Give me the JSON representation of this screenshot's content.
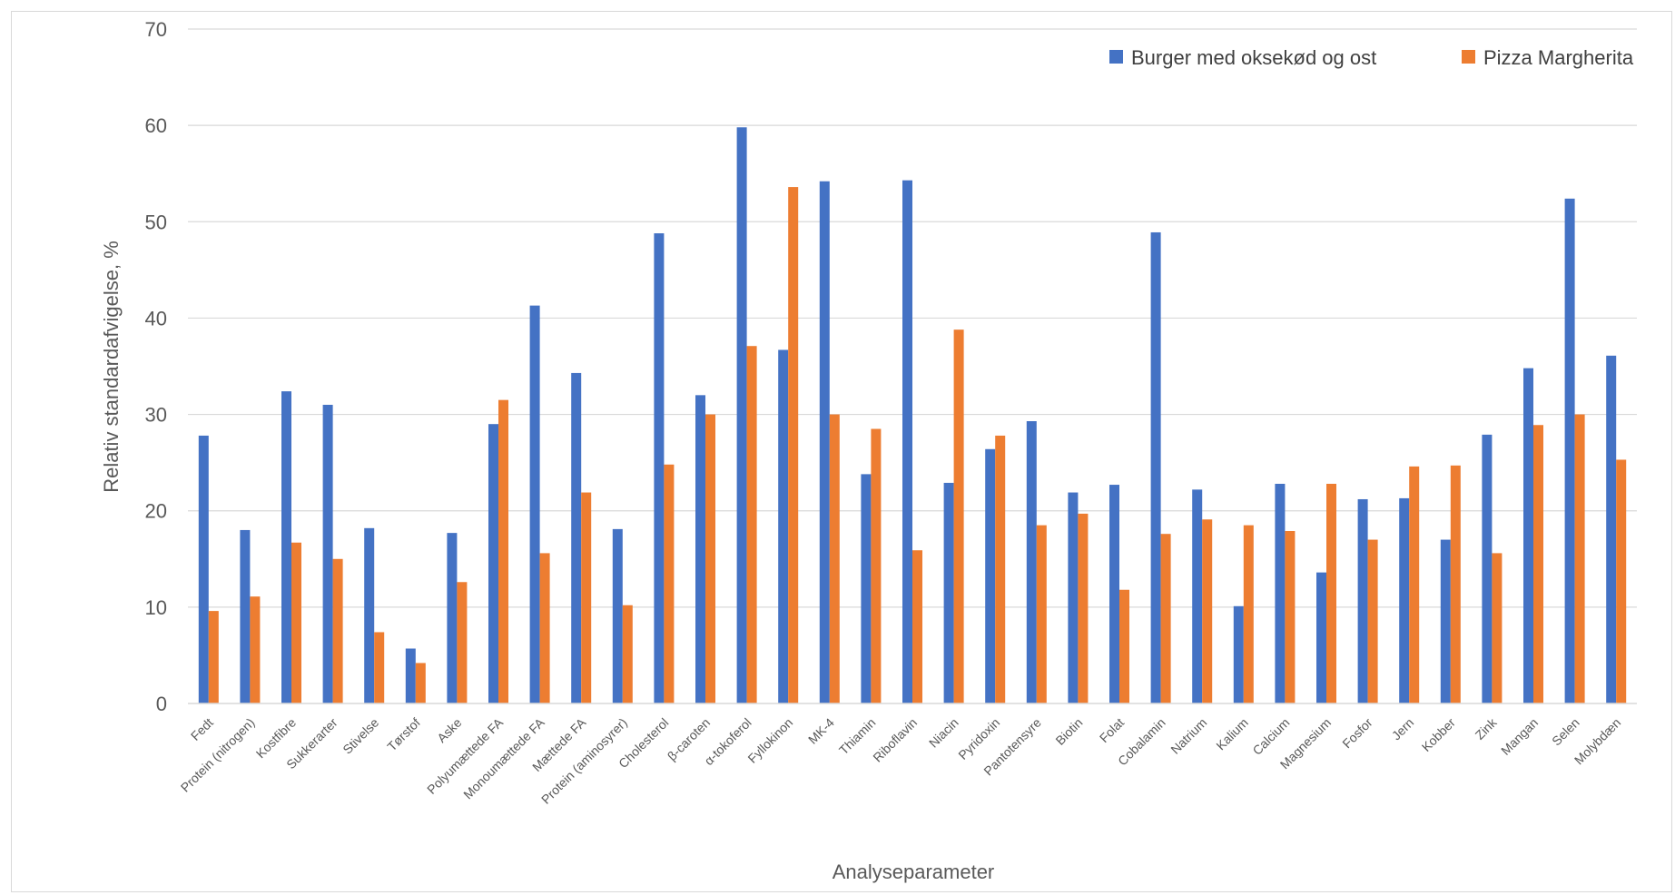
{
  "chart_data": {
    "type": "bar",
    "xlabel": "Analyseparameter",
    "ylabel": "Relativ standardafvigelse, %",
    "ylim": [
      0,
      70
    ],
    "yticks": [
      0,
      10,
      20,
      30,
      40,
      50,
      60,
      70
    ],
    "grid": true,
    "legend_position": "top-right",
    "categories": [
      "Fedt",
      "Protein (nitrogen)",
      "Kostfibre",
      "Sukkerarter",
      "Stivelse",
      "Tørstof",
      "Aske",
      "Polyumættede FA",
      "Monoumættede FA",
      "Mættede FA",
      "Protein (aminosyrer)",
      "Cholesterol",
      "β-caroten",
      "α-tokoferol",
      "Fyllokinon",
      "MK-4",
      "Thiamin",
      "Riboflavin",
      "Niacin",
      "Pyridoxin",
      "Pantotensyre",
      "Biotin",
      "Folat",
      "Cobalamin",
      "Natrium",
      "Kalium",
      "Calcium",
      "Magnesium",
      "Fosfor",
      "Jern",
      "Kobber",
      "Zink",
      "Mangan",
      "Selen",
      "Molybdæn"
    ],
    "series": [
      {
        "name": "Burger med oksekød og ost",
        "color": "#4472C4",
        "values": [
          27.8,
          18.0,
          32.4,
          31.0,
          18.2,
          5.7,
          17.7,
          29.0,
          41.3,
          34.3,
          18.1,
          48.8,
          32.0,
          59.8,
          36.7,
          54.2,
          23.8,
          54.3,
          22.9,
          26.4,
          29.3,
          21.9,
          22.7,
          48.9,
          22.2,
          10.1,
          22.8,
          13.6,
          21.2,
          21.3,
          17.0,
          27.9,
          34.8,
          52.4,
          36.1
        ]
      },
      {
        "name": "Pizza Margherita",
        "color": "#ED7D31",
        "values": [
          9.6,
          11.1,
          16.7,
          15.0,
          7.4,
          4.2,
          12.6,
          31.5,
          15.6,
          21.9,
          10.2,
          24.8,
          30.0,
          37.1,
          53.6,
          30.0,
          28.5,
          15.9,
          38.8,
          27.8,
          18.5,
          19.7,
          11.8,
          17.6,
          19.1,
          18.5,
          17.9,
          22.8,
          17.0,
          24.6,
          24.7,
          15.6,
          28.9,
          30.0,
          25.3
        ]
      }
    ]
  }
}
